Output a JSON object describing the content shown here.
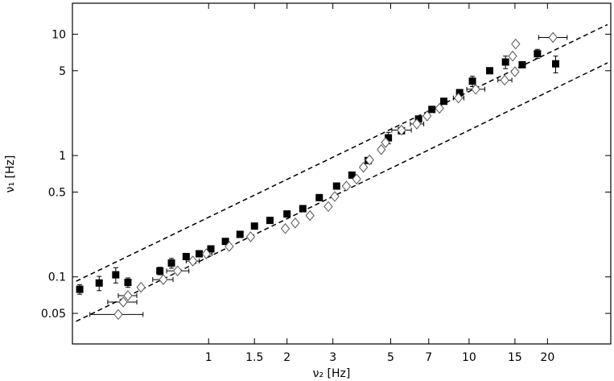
{
  "chart_data": {
    "type": "scatter",
    "xscale": "log",
    "yscale": "log",
    "xlim": [
      0.3,
      35
    ],
    "ylim": [
      0.028,
      18
    ],
    "grid": false,
    "xlabel": "ν₂ [Hz]",
    "ylabel": "ν₁ [Hz]",
    "xticks": [
      {
        "value": 1,
        "label": "1"
      },
      {
        "value": 1.5,
        "label": "1.5"
      },
      {
        "value": 2,
        "label": "2"
      },
      {
        "value": 3,
        "label": "3"
      },
      {
        "value": 5,
        "label": "5"
      },
      {
        "value": 7,
        "label": "7"
      },
      {
        "value": 10,
        "label": "10"
      },
      {
        "value": 15,
        "label": "15"
      },
      {
        "value": 20,
        "label": "20"
      }
    ],
    "yticks": [
      {
        "value": 0.05,
        "label": "0.05"
      },
      {
        "value": 0.1,
        "label": "0.1"
      },
      {
        "value": 0.5,
        "label": "0.5"
      },
      {
        "value": 1,
        "label": "1"
      },
      {
        "value": 5,
        "label": "5"
      },
      {
        "value": 10,
        "label": "10"
      }
    ],
    "lines": [
      {
        "style": "dashed",
        "points": [
          [
            0.31,
            0.092
          ],
          [
            34,
            12.0
          ]
        ]
      },
      {
        "style": "dashed",
        "points": [
          [
            0.31,
            0.043
          ],
          [
            34,
            5.8
          ]
        ]
      }
    ],
    "series": [
      {
        "marker": "filled-square",
        "points": [
          {
            "x": 0.32,
            "y": 0.079,
            "yerr": 0.007
          },
          {
            "x": 0.38,
            "y": 0.089,
            "yerr": 0.012
          },
          {
            "x": 0.44,
            "y": 0.104,
            "yerr": 0.015
          },
          {
            "x": 0.49,
            "y": 0.09,
            "yerr": 0.008
          },
          {
            "x": 0.65,
            "y": 0.112,
            "yerr": 0.008
          },
          {
            "x": 0.72,
            "y": 0.13,
            "yerr": 0.012
          },
          {
            "x": 0.82,
            "y": 0.147,
            "yerr": 0.008
          },
          {
            "x": 0.92,
            "y": 0.155
          },
          {
            "x": 1.02,
            "y": 0.17
          },
          {
            "x": 1.16,
            "y": 0.196
          },
          {
            "x": 1.32,
            "y": 0.224
          },
          {
            "x": 1.5,
            "y": 0.262
          },
          {
            "x": 1.72,
            "y": 0.292
          },
          {
            "x": 2.0,
            "y": 0.33
          },
          {
            "x": 2.3,
            "y": 0.365
          },
          {
            "x": 2.66,
            "y": 0.45
          },
          {
            "x": 3.1,
            "y": 0.56
          },
          {
            "x": 3.55,
            "y": 0.69
          },
          {
            "x": 4.1,
            "y": 0.91
          },
          {
            "x": 4.9,
            "y": 1.4,
            "yerr": 0.15
          },
          {
            "x": 5.5,
            "y": 1.6
          },
          {
            "x": 6.4,
            "y": 2.0
          },
          {
            "x": 7.2,
            "y": 2.4
          },
          {
            "x": 8.0,
            "y": 2.8
          },
          {
            "x": 9.2,
            "y": 3.3
          },
          {
            "x": 10.3,
            "y": 4.1,
            "yerr": 0.4
          },
          {
            "x": 12.0,
            "y": 5.0
          },
          {
            "x": 13.8,
            "y": 5.9,
            "yerr": 0.7
          },
          {
            "x": 16.0,
            "y": 5.6
          },
          {
            "x": 18.3,
            "y": 6.9,
            "yerr": 0.6
          },
          {
            "x": 21.5,
            "y": 5.7,
            "yerr": 0.9
          }
        ]
      },
      {
        "marker": "open-diamond",
        "points": [
          {
            "x": 0.45,
            "y": 0.049,
            "xerr": [
              0.1,
              0.11
            ]
          },
          {
            "x": 0.47,
            "y": 0.062,
            "xerr": [
              0.06,
              0.06
            ]
          },
          {
            "x": 0.49,
            "y": 0.07,
            "xerr": [
              0.04,
              0.04
            ]
          },
          {
            "x": 0.55,
            "y": 0.082
          },
          {
            "x": 0.67,
            "y": 0.095,
            "xerr": [
              0.06,
              0.06
            ]
          },
          {
            "x": 0.76,
            "y": 0.112,
            "xerr": [
              0.07,
              0.08
            ]
          },
          {
            "x": 0.87,
            "y": 0.135,
            "xerr": [
              0.05,
              0.05
            ]
          },
          {
            "x": 0.98,
            "y": 0.155,
            "xerr": [
              0.05,
              0.05
            ]
          },
          {
            "x": 1.2,
            "y": 0.178
          },
          {
            "x": 1.45,
            "y": 0.214
          },
          {
            "x": 1.97,
            "y": 0.25
          },
          {
            "x": 2.15,
            "y": 0.278
          },
          {
            "x": 2.45,
            "y": 0.32
          },
          {
            "x": 2.88,
            "y": 0.38
          },
          {
            "x": 3.05,
            "y": 0.46
          },
          {
            "x": 3.38,
            "y": 0.56
          },
          {
            "x": 3.7,
            "y": 0.64
          },
          {
            "x": 3.93,
            "y": 0.8
          },
          {
            "x": 4.15,
            "y": 0.92
          },
          {
            "x": 4.6,
            "y": 1.12
          },
          {
            "x": 4.78,
            "y": 1.28
          },
          {
            "x": 5.5,
            "y": 1.62,
            "xerr": [
              0.45,
              0.5
            ]
          },
          {
            "x": 6.3,
            "y": 1.82,
            "xerr": [
              0.35,
              0.4
            ]
          },
          {
            "x": 6.9,
            "y": 2.12
          },
          {
            "x": 7.7,
            "y": 2.45
          },
          {
            "x": 9.1,
            "y": 2.98,
            "xerr": [
              0.4,
              0.45
            ]
          },
          {
            "x": 10.6,
            "y": 3.52,
            "xerr": [
              0.8,
              0.9
            ]
          },
          {
            "x": 13.7,
            "y": 4.18,
            "xerr": [
              0.8,
              0.9
            ]
          },
          {
            "x": 15.0,
            "y": 4.9
          },
          {
            "x": 14.7,
            "y": 6.6
          },
          {
            "x": 15.1,
            "y": 8.3
          },
          {
            "x": 21.0,
            "y": 9.4,
            "xerr": [
              2.5,
              2.8
            ]
          }
        ]
      }
    ]
  }
}
